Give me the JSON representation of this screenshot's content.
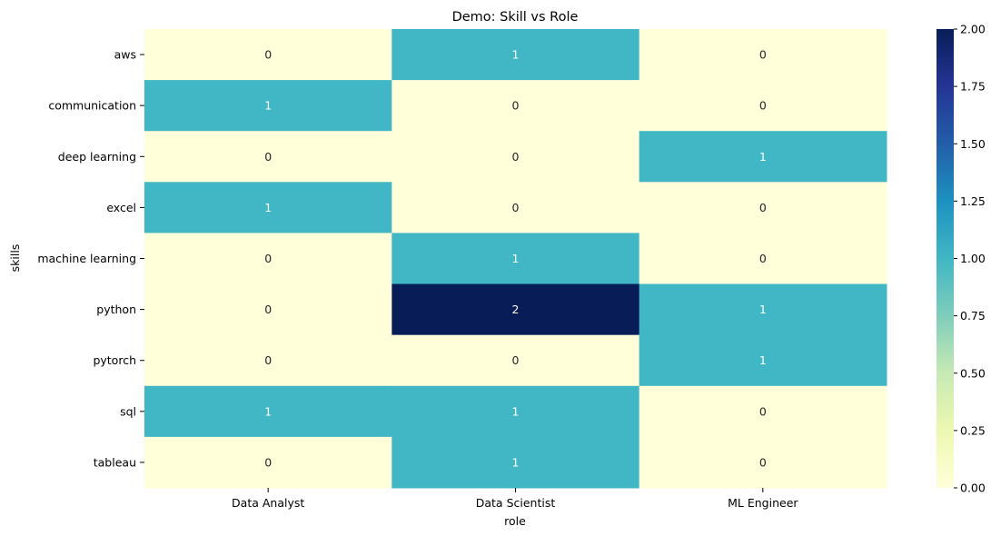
{
  "chart_data": {
    "type": "heatmap",
    "title": "Demo: Skill vs Role",
    "xlabel": "role",
    "ylabel": "skills",
    "x_categories": [
      "Data Analyst",
      "Data Scientist",
      "ML Engineer"
    ],
    "y_categories": [
      "aws",
      "communication",
      "deep learning",
      "excel",
      "machine learning",
      "python",
      "pytorch",
      "sql",
      "tableau"
    ],
    "values": [
      [
        0,
        1,
        0
      ],
      [
        1,
        0,
        0
      ],
      [
        0,
        0,
        1
      ],
      [
        1,
        0,
        0
      ],
      [
        0,
        1,
        0
      ],
      [
        0,
        2,
        1
      ],
      [
        0,
        0,
        1
      ],
      [
        1,
        1,
        0
      ],
      [
        0,
        1,
        0
      ]
    ],
    "colormap": "YlGnBu",
    "color_range": [
      0,
      2
    ],
    "colorbar_ticks": [
      "0.00",
      "0.25",
      "0.50",
      "0.75",
      "1.00",
      "1.25",
      "1.50",
      "1.75",
      "2.00"
    ],
    "annotations": true,
    "colors": {
      "zero": "#ffffd9",
      "one": "#41b6c4",
      "two": "#081d58"
    }
  }
}
